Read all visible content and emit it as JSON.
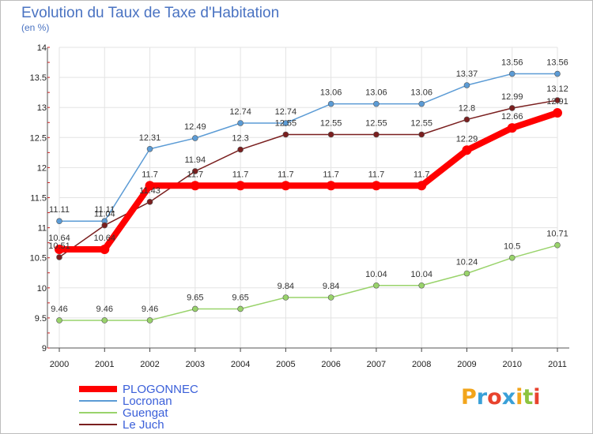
{
  "title": "Evolution du Taux de Taxe d'Habitation",
  "subtitle": "(en %)",
  "logo": {
    "text": "Proxiti",
    "colors": [
      "#f2a51c",
      "#3aa0d8",
      "#e8432e",
      "#3aa0d8",
      "#f2a51c",
      "#8cc43f",
      "#e8432e"
    ]
  },
  "chart_data": {
    "type": "line",
    "x": [
      "2000",
      "2001",
      "2002",
      "2003",
      "2004",
      "2005",
      "2006",
      "2007",
      "2008",
      "2009",
      "2010",
      "2011"
    ],
    "ylim": [
      9,
      14
    ],
    "yticks": [
      "9",
      "9.5",
      "10",
      "10.5",
      "11",
      "11.5",
      "12",
      "12.5",
      "13",
      "13.5",
      "14"
    ],
    "series": [
      {
        "name": "PLOGONNEC",
        "color": "#ff0000",
        "values": [
          10.64,
          10.64,
          11.7,
          11.7,
          11.7,
          11.7,
          11.7,
          11.7,
          11.7,
          12.29,
          12.66,
          12.91
        ],
        "labels": [
          "10.64",
          "10.64",
          "11.7",
          "11.7",
          "11.7",
          "11.7",
          "11.7",
          "11.7",
          "11.7",
          "12.29",
          "12.66",
          "12.91"
        ]
      },
      {
        "name": "Locronan",
        "color": "#5b9bd5",
        "values": [
          11.11,
          11.11,
          12.31,
          12.49,
          12.74,
          12.74,
          13.06,
          13.06,
          13.06,
          13.37,
          13.56,
          13.56
        ],
        "labels": [
          "11.11",
          "11.11",
          "12.31",
          "12.49",
          "12.74",
          "12.74",
          "13.06",
          "13.06",
          "13.06",
          "13.37",
          "13.56",
          "13.56"
        ]
      },
      {
        "name": "Guengat",
        "color": "#99d36b",
        "values": [
          9.46,
          9.46,
          9.46,
          9.65,
          9.65,
          9.84,
          9.84,
          10.04,
          10.04,
          10.24,
          10.5,
          10.71
        ],
        "labels": [
          "9.46",
          "9.46",
          "9.46",
          "9.65",
          "9.65",
          "9.84",
          "9.84",
          "10.04",
          "10.04",
          "10.24",
          "10.5",
          "10.71"
        ]
      },
      {
        "name": "Le Juch",
        "color": "#7a1f1f",
        "values": [
          10.51,
          11.04,
          11.43,
          11.94,
          12.3,
          12.55,
          12.55,
          12.55,
          12.55,
          12.8,
          12.99,
          13.12
        ],
        "labels": [
          "10.51",
          "11.04",
          "11.43",
          "11.94",
          "12.3",
          "12.55",
          "12.55",
          "12.55",
          "12.55",
          "12.8",
          "12.99",
          "13.12"
        ]
      }
    ]
  }
}
